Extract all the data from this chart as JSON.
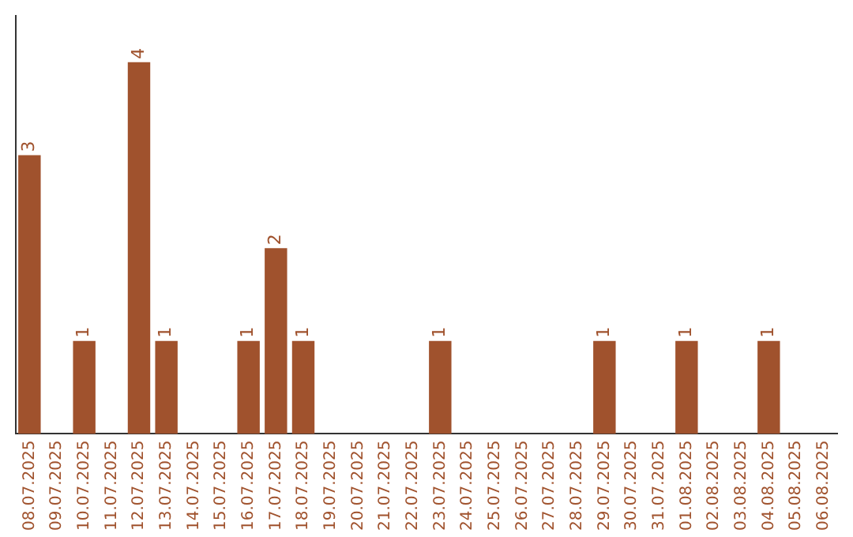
{
  "chart_data": {
    "type": "bar",
    "categories": [
      "08.07.2025",
      "09.07.2025",
      "10.07.2025",
      "11.07.2025",
      "12.07.2025",
      "13.07.2025",
      "14.07.2025",
      "15.07.2025",
      "16.07.2025",
      "17.07.2025",
      "18.07.2025",
      "19.07.2025",
      "20.07.2025",
      "21.07.2025",
      "22.07.2025",
      "23.07.2025",
      "24.07.2025",
      "25.07.2025",
      "26.07.2025",
      "27.07.2025",
      "28.07.2025",
      "29.07.2025",
      "30.07.2025",
      "31.07.2025",
      "01.08.2025",
      "02.08.2025",
      "03.08.2025",
      "04.08.2025",
      "05.08.2025",
      "06.08.2025"
    ],
    "values": [
      3,
      0,
      1,
      0,
      4,
      1,
      0,
      0,
      1,
      2,
      1,
      0,
      0,
      0,
      0,
      1,
      0,
      0,
      0,
      0,
      0,
      1,
      0,
      0,
      1,
      0,
      0,
      1,
      0,
      0
    ],
    "color": "#a0522d",
    "value_labels": [
      "3",
      null,
      "1",
      null,
      "4",
      "1",
      null,
      null,
      "1",
      "2",
      "1",
      null,
      null,
      null,
      null,
      "1",
      null,
      null,
      null,
      null,
      null,
      "1",
      null,
      null,
      "1",
      null,
      null,
      "1",
      null,
      null
    ],
    "grid": false,
    "legend": false
  }
}
